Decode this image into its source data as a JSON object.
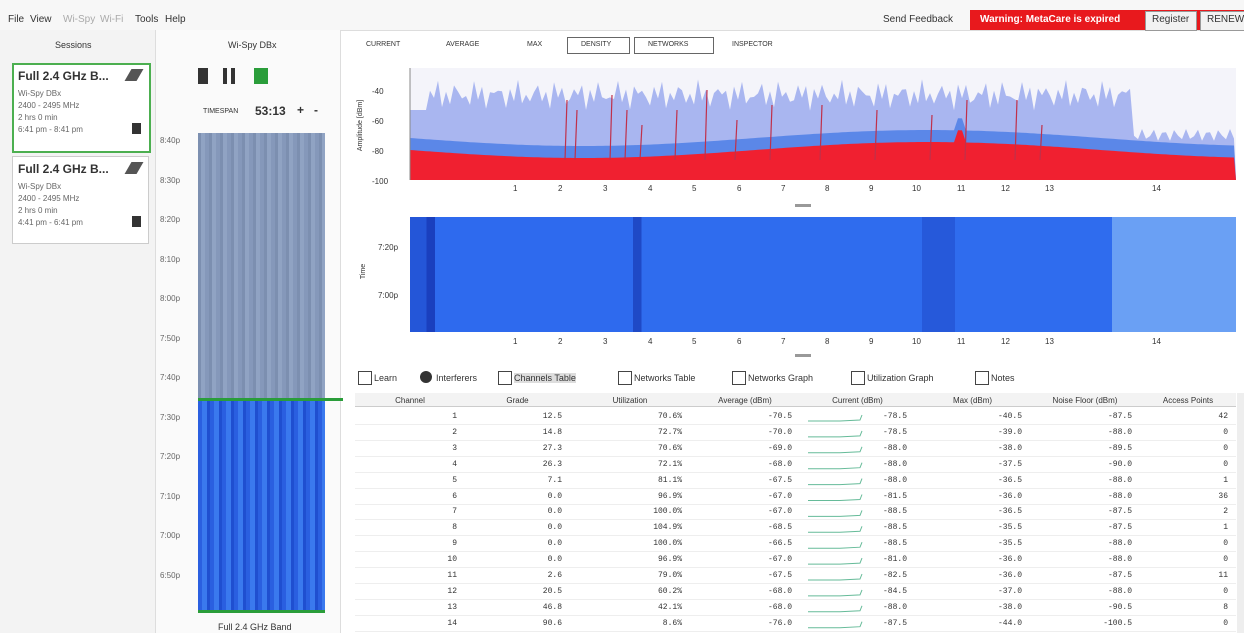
{
  "menu": [
    "File",
    "View",
    "Wi-Spy",
    "Wi-Fi",
    "Tools",
    "Help"
  ],
  "top_right": {
    "feedback": "Send Feedback",
    "warning": "Warning: MetaCare is expired",
    "register": "Register",
    "renew": "RENEW"
  },
  "sessions": {
    "title": "Sessions",
    "items": [
      {
        "name": "Full 2.4 GHz B...",
        "device": "Wi-Spy DBx",
        "range": "2400 - 2495 MHz",
        "duration": "2 hrs 0 min",
        "time": "6:41 pm - 8:41 pm"
      },
      {
        "name": "Full 2.4 GHz B...",
        "device": "Wi-Spy DBx",
        "range": "2400 - 2495 MHz",
        "duration": "2 hrs 0 min",
        "time": "4:41 pm - 6:41 pm"
      }
    ]
  },
  "wispy": {
    "title": "Wi-Spy DBx",
    "timespan_label": "TIMESPAN",
    "timespan": "53:13",
    "plus": "+",
    "minus": "-",
    "times": [
      "8:40p",
      "8:30p",
      "8:20p",
      "8:10p",
      "8:00p",
      "7:50p",
      "7:40p",
      "7:30p",
      "7:20p",
      "7:10p",
      "7:00p",
      "6:50p"
    ],
    "band": "Full 2.4 GHz Band"
  },
  "toolbar": [
    "CURRENT",
    "AVERAGE",
    "MAX",
    "DENSITY",
    "NETWORKS",
    "INSPECTOR"
  ],
  "spectrum": {
    "y_label": "Amplitude [dBm]",
    "y_ticks": [
      "-40",
      "-60",
      "-80",
      "-100"
    ],
    "channels": [
      "1",
      "2",
      "3",
      "4",
      "5",
      "6",
      "7",
      "8",
      "9",
      "10",
      "11",
      "12",
      "13",
      "14"
    ]
  },
  "waterfall": {
    "y_label": "Time",
    "times": [
      "7:20p",
      "7:00p"
    ],
    "channels": [
      "1",
      "2",
      "3",
      "4",
      "5",
      "6",
      "7",
      "8",
      "9",
      "10",
      "11",
      "12",
      "13",
      "14"
    ]
  },
  "tabs": [
    "Learn",
    "Interferers",
    "Channels Table",
    "Networks Table",
    "Networks Graph",
    "Utilization Graph",
    "Notes"
  ],
  "table": {
    "headers": [
      "Channel",
      "Grade",
      "Utilization",
      "Average (dBm)",
      "Current (dBm)",
      "Max (dBm)",
      "Noise Floor (dBm)",
      "Access Points"
    ],
    "rows": [
      [
        "1",
        "12.5",
        "70.6%",
        "-70.5",
        "-78.5",
        "-40.5",
        "-87.5",
        "42"
      ],
      [
        "2",
        "14.8",
        "72.7%",
        "-70.0",
        "-78.5",
        "-39.0",
        "-88.0",
        "0"
      ],
      [
        "3",
        "27.3",
        "70.6%",
        "-69.0",
        "-88.0",
        "-38.0",
        "-89.5",
        "0"
      ],
      [
        "4",
        "26.3",
        "72.1%",
        "-68.0",
        "-88.0",
        "-37.5",
        "-90.0",
        "0"
      ],
      [
        "5",
        "7.1",
        "81.1%",
        "-67.5",
        "-88.0",
        "-36.5",
        "-88.0",
        "1"
      ],
      [
        "6",
        "0.0",
        "96.9%",
        "-67.0",
        "-81.5",
        "-36.0",
        "-88.0",
        "36"
      ],
      [
        "7",
        "0.0",
        "100.0%",
        "-67.0",
        "-88.5",
        "-36.5",
        "-87.5",
        "2"
      ],
      [
        "8",
        "0.0",
        "104.9%",
        "-68.5",
        "-88.5",
        "-35.5",
        "-87.5",
        "1"
      ],
      [
        "9",
        "0.0",
        "100.0%",
        "-66.5",
        "-88.5",
        "-35.5",
        "-88.0",
        "0"
      ],
      [
        "10",
        "0.0",
        "96.9%",
        "-67.0",
        "-81.0",
        "-36.0",
        "-88.0",
        "0"
      ],
      [
        "11",
        "2.6",
        "79.0%",
        "-67.5",
        "-82.5",
        "-36.0",
        "-87.5",
        "11"
      ],
      [
        "12",
        "20.5",
        "60.2%",
        "-68.0",
        "-84.5",
        "-37.0",
        "-88.0",
        "0"
      ],
      [
        "13",
        "46.8",
        "42.1%",
        "-68.0",
        "-88.0",
        "-38.0",
        "-90.5",
        "8"
      ],
      [
        "14",
        "90.6",
        "8.6%",
        "-76.0",
        "-87.5",
        "-44.0",
        "-100.5",
        "0"
      ]
    ]
  }
}
